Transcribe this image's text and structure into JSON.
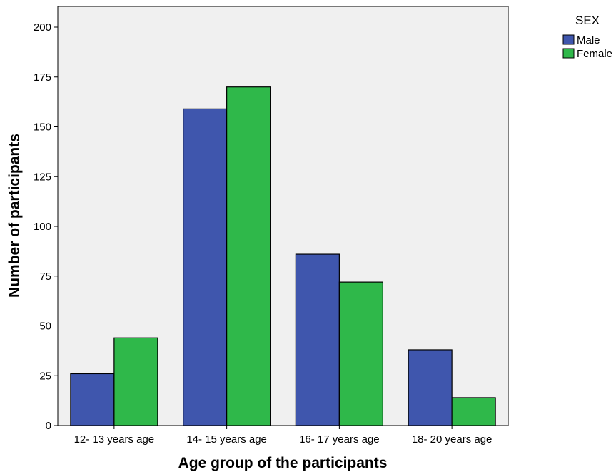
{
  "chart_data": {
    "type": "bar",
    "categories": [
      "12- 13 years age",
      "14- 15 years age",
      "16- 17 years age",
      "18- 20 years age"
    ],
    "series": [
      {
        "name": "Male",
        "values": [
          26,
          159,
          86,
          38
        ],
        "color": "#3f56ad"
      },
      {
        "name": "Female",
        "values": [
          44,
          170,
          72,
          14
        ],
        "color": "#2fb84a"
      }
    ],
    "xlabel": "Age group of the participants",
    "ylabel": "Number of participants",
    "ylim": [
      0,
      200
    ],
    "yticks": [
      "0",
      "25",
      "50",
      "75",
      "100",
      "125",
      "150",
      "175",
      "200"
    ],
    "legend": {
      "title": "SEX",
      "position": "top-right outside"
    },
    "plot_background": "#f0f0f0",
    "grid": false
  }
}
